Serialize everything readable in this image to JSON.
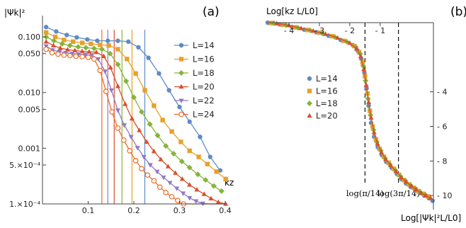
{
  "panel_labels": [
    "(a)",
    "(b)"
  ],
  "chart_data": [
    {
      "type": "line",
      "panel": "(a)",
      "ylabel": "|Ψk|²",
      "xlabel": "kz",
      "y_scale": "log",
      "ylim": [
        0.0001,
        0.18
      ],
      "xlim": [
        0.0,
        0.4
      ],
      "x_ticks": [
        {
          "v": 0.1,
          "label": "0.1"
        },
        {
          "v": 0.2,
          "label": "0.2"
        },
        {
          "v": 0.3,
          "label": "0.3"
        },
        {
          "v": 0.4,
          "label": "0.4"
        }
      ],
      "y_ticks": [
        {
          "v": 0.1,
          "label": "0.100"
        },
        {
          "v": 0.05,
          "label": "0.050"
        },
        {
          "v": 0.01,
          "label": "0.010"
        },
        {
          "v": 0.005,
          "label": "0.005"
        },
        {
          "v": 0.001,
          "label": "0.001"
        },
        {
          "v": 0.0005,
          "label": "5.×10⁻⁴"
        },
        {
          "v": 0.0001,
          "label": "1.×10⁻⁴"
        }
      ],
      "vertical_lines": [
        {
          "x": 0.13,
          "color": "#ec6d29"
        },
        {
          "x": 0.143,
          "color": "#8f7ac5"
        },
        {
          "x": 0.157,
          "color": "#d94f2b"
        },
        {
          "x": 0.174,
          "color": "#87b33a"
        },
        {
          "x": 0.196,
          "color": "#e6a12a"
        },
        {
          "x": 0.224,
          "color": "#5e8bc5"
        }
      ],
      "series": [
        {
          "name": "L=14",
          "color": "#5e8bc5",
          "marker": "circle",
          "x": [
            0.0,
            0.022,
            0.045,
            0.067,
            0.09,
            0.112,
            0.135,
            0.157,
            0.18,
            0.202,
            0.224,
            0.247,
            0.269,
            0.292,
            0.314,
            0.337,
            0.359,
            0.381
          ],
          "y": [
            0.15,
            0.125,
            0.108,
            0.098,
            0.09,
            0.085,
            0.085,
            0.085,
            0.082,
            0.065,
            0.042,
            0.022,
            0.011,
            0.0055,
            0.003,
            0.0016,
            0.0007,
            0.0004
          ]
        },
        {
          "name": "L=16",
          "color": "#e6a12a",
          "marker": "square",
          "x": [
            0.0,
            0.02,
            0.039,
            0.059,
            0.079,
            0.098,
            0.118,
            0.137,
            0.157,
            0.177,
            0.196,
            0.216,
            0.236,
            0.255,
            0.275,
            0.295,
            0.314,
            0.334,
            0.353,
            0.373,
            0.393
          ],
          "y": [
            0.12,
            0.1,
            0.088,
            0.082,
            0.078,
            0.075,
            0.072,
            0.07,
            0.06,
            0.04,
            0.022,
            0.011,
            0.0058,
            0.0032,
            0.002,
            0.0013,
            0.0009,
            0.0007,
            0.00052,
            0.00038,
            0.00028
          ]
        },
        {
          "name": "L=18",
          "color": "#87b33a",
          "marker": "diamond",
          "x": [
            0.0,
            0.017,
            0.035,
            0.052,
            0.07,
            0.087,
            0.105,
            0.122,
            0.14,
            0.157,
            0.175,
            0.192,
            0.209,
            0.227,
            0.244,
            0.262,
            0.279,
            0.297,
            0.314,
            0.332,
            0.349,
            0.367,
            0.384
          ],
          "y": [
            0.1,
            0.085,
            0.075,
            0.07,
            0.066,
            0.064,
            0.062,
            0.06,
            0.05,
            0.032,
            0.016,
            0.0082,
            0.0045,
            0.0027,
            0.0017,
            0.0011,
            0.0008,
            0.00058,
            0.00045,
            0.00034,
            0.00027,
            0.00021,
            0.00017
          ]
        },
        {
          "name": "L=20",
          "color": "#d94f2b",
          "marker": "triangle",
          "x": [
            0.0,
            0.016,
            0.031,
            0.047,
            0.063,
            0.079,
            0.094,
            0.11,
            0.126,
            0.141,
            0.157,
            0.173,
            0.188,
            0.204,
            0.22,
            0.236,
            0.251,
            0.267,
            0.283,
            0.298,
            0.314,
            0.33,
            0.346,
            0.361,
            0.377,
            0.393
          ],
          "y": [
            0.082,
            0.07,
            0.063,
            0.059,
            0.057,
            0.055,
            0.054,
            0.053,
            0.045,
            0.028,
            0.013,
            0.0062,
            0.0034,
            0.0021,
            0.0013,
            0.00088,
            0.00063,
            0.00047,
            0.00036,
            0.00028,
            0.00022,
            0.00018,
            0.00015,
            0.000125,
            0.000108,
            0.0001
          ]
        },
        {
          "name": "L=22",
          "color": "#8f7ac5",
          "marker": "triangle-down",
          "x": [
            0.0,
            0.014,
            0.029,
            0.043,
            0.057,
            0.071,
            0.086,
            0.1,
            0.114,
            0.129,
            0.143,
            0.157,
            0.171,
            0.186,
            0.2,
            0.214,
            0.228,
            0.243,
            0.257,
            0.271,
            0.286,
            0.3,
            0.314,
            0.328,
            0.343,
            0.357,
            0.371,
            0.386
          ],
          "y": [
            0.068,
            0.058,
            0.054,
            0.052,
            0.05,
            0.049,
            0.048,
            0.047,
            0.04,
            0.024,
            0.011,
            0.0048,
            0.0026,
            0.0016,
            0.00102,
            0.0007,
            0.0005,
            0.00038,
            0.0003,
            0.00024,
            0.00019,
            0.000155,
            0.000128,
            0.000112,
            0.000102,
            9.5e-05,
            9e-05,
            8.8e-05
          ]
        },
        {
          "name": "L=24",
          "color": "#ec6d29",
          "marker": "circle-open",
          "x": [
            0.0,
            0.013,
            0.026,
            0.039,
            0.052,
            0.065,
            0.079,
            0.092,
            0.105,
            0.118,
            0.131,
            0.144,
            0.157,
            0.17,
            0.183,
            0.196,
            0.209,
            0.222,
            0.236,
            0.249,
            0.262,
            0.275,
            0.288,
            0.301,
            0.314,
            0.327,
            0.34,
            0.353,
            0.367,
            0.38
          ],
          "y": [
            0.06,
            0.052,
            0.049,
            0.047,
            0.046,
            0.045,
            0.044,
            0.043,
            0.04,
            0.025,
            0.0105,
            0.0045,
            0.0023,
            0.0014,
            0.0009,
            0.0006,
            0.00043,
            0.00033,
            0.00026,
            0.0002,
            0.00016,
            0.000135,
            0.000115,
            0.0001,
            9.2e-05,
            8.6e-05,
            8.2e-05,
            8e-05,
            7.8e-05,
            7.7e-05
          ]
        }
      ]
    },
    {
      "type": "scatter",
      "panel": "(b)",
      "xlabel": "Log[kz L/L0]",
      "ylabel": "Log[|Ψk|²L/L0]",
      "x_axis_position": "top",
      "y_axis_position": "right",
      "xlim": [
        -4.7,
        0.75
      ],
      "ylim": [
        -10.4,
        0.0
      ],
      "x_ticks": [
        {
          "v": -4,
          "label": "- 4"
        },
        {
          "v": -3,
          "label": "- 3"
        },
        {
          "v": -2,
          "label": "- 2"
        },
        {
          "v": -1,
          "label": "- 1"
        }
      ],
      "y_ticks": [
        {
          "v": -4,
          "label": "- 4"
        },
        {
          "v": -6,
          "label": "- 6"
        },
        {
          "v": -8,
          "label": "- 8"
        },
        {
          "v": -10,
          "label": "- 10"
        }
      ],
      "dashed_lines": [
        {
          "x": -1.5,
          "label": "log(π/14)"
        },
        {
          "x": -0.4,
          "label": "log(3π/14)"
        }
      ],
      "series": [
        {
          "name": "L=14",
          "color": "#5e8bc5",
          "marker": "circle",
          "x": [
            -4.7,
            -4.3,
            -3.9,
            -3.5,
            -3.1,
            -2.7,
            -2.3,
            -1.9,
            -1.75,
            -1.62,
            -1.52,
            -1.45,
            -1.38,
            -1.3,
            -1.2,
            -1.08,
            -0.95,
            -0.8,
            -0.62,
            -0.45,
            -0.3,
            -0.15,
            0.0,
            0.15,
            0.3,
            0.45,
            0.6,
            0.72
          ],
          "y": [
            0.0,
            -0.1,
            -0.25,
            -0.4,
            -0.55,
            -0.75,
            -1.0,
            -1.3,
            -1.6,
            -2.1,
            -2.9,
            -3.8,
            -4.8,
            -5.8,
            -6.6,
            -7.2,
            -7.65,
            -8.05,
            -8.4,
            -8.75,
            -9.05,
            -9.3,
            -9.5,
            -9.7,
            -9.85,
            -10.0,
            -10.15,
            -10.3
          ]
        },
        {
          "name": "L=16",
          "color": "#e6a12a",
          "marker": "square",
          "x": [
            -4.6,
            -4.2,
            -3.8,
            -3.4,
            -3.0,
            -2.6,
            -2.2,
            -1.85,
            -1.7,
            -1.58,
            -1.5,
            -1.42,
            -1.34,
            -1.25,
            -1.14,
            -1.02,
            -0.88,
            -0.72,
            -0.55,
            -0.38,
            -0.22,
            -0.06,
            0.1,
            0.26,
            0.42,
            0.58
          ],
          "y": [
            -0.02,
            -0.12,
            -0.27,
            -0.42,
            -0.58,
            -0.78,
            -1.05,
            -1.35,
            -1.7,
            -2.3,
            -3.1,
            -4.1,
            -5.1,
            -6.0,
            -6.75,
            -7.3,
            -7.75,
            -8.1,
            -8.45,
            -8.8,
            -9.1,
            -9.35,
            -9.55,
            -9.75,
            -9.9,
            -10.05
          ]
        },
        {
          "name": "L=18",
          "color": "#87b33a",
          "marker": "diamond",
          "x": [
            -4.5,
            -4.1,
            -3.7,
            -3.3,
            -2.9,
            -2.5,
            -2.1,
            -1.8,
            -1.66,
            -1.56,
            -1.48,
            -1.4,
            -1.32,
            -1.22,
            -1.11,
            -0.98,
            -0.84,
            -0.68,
            -0.5,
            -0.33,
            -0.17,
            0.0,
            0.16,
            0.32,
            0.48
          ],
          "y": [
            -0.03,
            -0.14,
            -0.3,
            -0.45,
            -0.62,
            -0.82,
            -1.1,
            -1.42,
            -1.8,
            -2.5,
            -3.35,
            -4.4,
            -5.35,
            -6.2,
            -6.9,
            -7.4,
            -7.85,
            -8.2,
            -8.55,
            -8.9,
            -9.15,
            -9.4,
            -9.6,
            -9.8,
            -9.95
          ]
        },
        {
          "name": "L=20",
          "color": "#d94f2b",
          "marker": "triangle",
          "x": [
            -4.4,
            -4.0,
            -3.6,
            -3.2,
            -2.8,
            -2.4,
            -2.0,
            -1.78,
            -1.64,
            -1.54,
            -1.46,
            -1.38,
            -1.3,
            -1.2,
            -1.09,
            -0.96,
            -0.82,
            -0.66,
            -0.48,
            -0.31,
            -0.15,
            0.02,
            0.18,
            0.34,
            0.5,
            0.66
          ],
          "y": [
            -0.05,
            -0.16,
            -0.33,
            -0.48,
            -0.66,
            -0.88,
            -1.18,
            -1.5,
            -1.95,
            -2.7,
            -3.6,
            -4.6,
            -5.5,
            -6.35,
            -7.0,
            -7.5,
            -7.9,
            -8.25,
            -8.6,
            -8.95,
            -9.2,
            -9.45,
            -9.65,
            -9.85,
            -10.0,
            -10.15
          ]
        }
      ]
    }
  ]
}
